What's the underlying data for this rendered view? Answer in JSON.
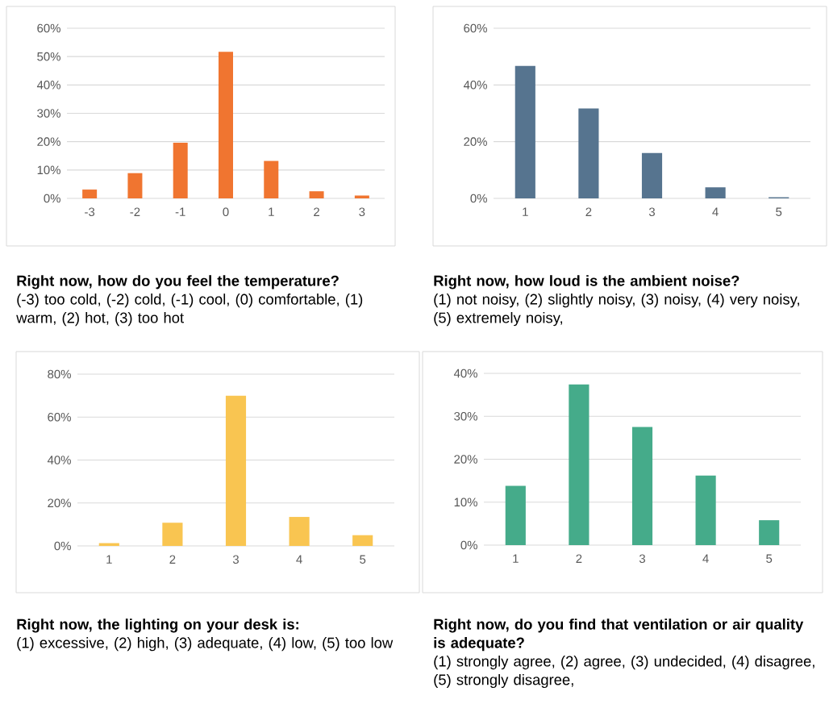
{
  "chart_data": [
    {
      "type": "bar",
      "title": "Right now, how do you feel the temperature?",
      "subtitle": "(-3) too cold, (-2) cold, (-1) cool, (0) comfortable, (1) warm, (2) hot, (3) too hot",
      "categories": [
        "-3",
        "-2",
        "-1",
        "0",
        "1",
        "2",
        "3"
      ],
      "values": [
        3.1,
        8.9,
        19.6,
        51.7,
        13.2,
        2.5,
        1.0
      ],
      "color": "#f07530",
      "ylim": [
        0,
        60
      ],
      "yticks": [
        {
          "value": 0,
          "label": "0%"
        },
        {
          "value": 10,
          "label": "10%"
        },
        {
          "value": 20,
          "label": "20%"
        },
        {
          "value": 30,
          "label": "30%"
        },
        {
          "value": 40,
          "label": "40%"
        },
        {
          "value": 50,
          "label": "50%"
        },
        {
          "value": 60,
          "label": "60%"
        }
      ],
      "grid": "y"
    },
    {
      "type": "bar",
      "title": "Right now, how loud is the ambient noise?",
      "subtitle": "(1) not noisy, (2) slightly noisy, (3) noisy, (4) very noisy, (5) extremely noisy,",
      "categories": [
        "1",
        "2",
        "3",
        "4",
        "5"
      ],
      "values": [
        46.7,
        31.7,
        16.0,
        3.9,
        0.4
      ],
      "color": "#56748f",
      "ylim": [
        0,
        60
      ],
      "yticks": [
        {
          "value": 0,
          "label": "0%"
        },
        {
          "value": 20,
          "label": "20%"
        },
        {
          "value": 40,
          "label": "40%"
        },
        {
          "value": 60,
          "label": "60%"
        }
      ],
      "grid": "y"
    },
    {
      "type": "bar",
      "title": "Right now, the lighting on your desk is:",
      "subtitle": "(1) excessive, (2) high, (3) adequate, (4) low, (5) too low",
      "categories": [
        "1",
        "2",
        "3",
        "4",
        "5"
      ],
      "values": [
        1.3,
        10.8,
        70.0,
        13.5,
        5.0
      ],
      "color": "#f9c551",
      "ylim": [
        0,
        80
      ],
      "yticks": [
        {
          "value": 0,
          "label": "0%"
        },
        {
          "value": 20,
          "label": "20%"
        },
        {
          "value": 40,
          "label": "40%"
        },
        {
          "value": 60,
          "label": "60%"
        },
        {
          "value": 80,
          "label": "80%"
        }
      ],
      "grid": "y"
    },
    {
      "type": "bar",
      "title": "Right now, do you find that ventilation or air quality is adequate?",
      "subtitle": "(1) strongly agree, (2) agree, (3) undecided, (4) disagree, (5) strongly disagree,",
      "categories": [
        "1",
        "2",
        "3",
        "4",
        "5"
      ],
      "values": [
        13.8,
        37.4,
        27.5,
        16.2,
        5.8
      ],
      "color": "#45ab8a",
      "ylim": [
        0,
        40
      ],
      "yticks": [
        {
          "value": 0,
          "label": "0%"
        },
        {
          "value": 10,
          "label": "10%"
        },
        {
          "value": 20,
          "label": "20%"
        },
        {
          "value": 30,
          "label": "30%"
        },
        {
          "value": 40,
          "label": "40%"
        }
      ],
      "grid": "y"
    }
  ]
}
